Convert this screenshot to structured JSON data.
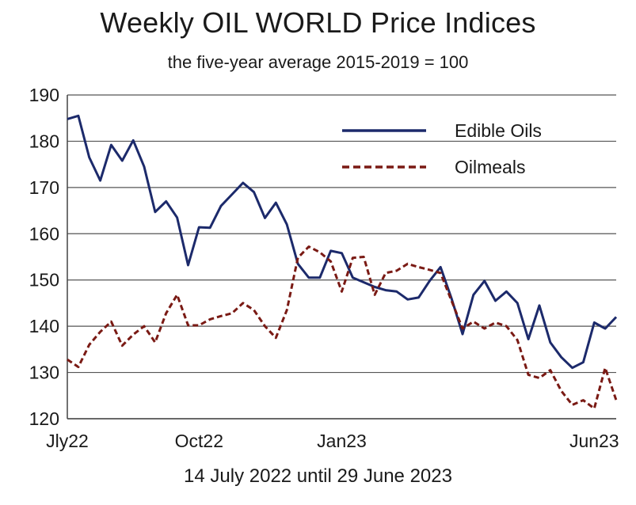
{
  "chart_data": {
    "type": "line",
    "title": "Weekly OIL WORLD Price Indices",
    "subtitle": "the five-year average 2015-2019 = 100",
    "xlabel": "14 July 2022 until 29 June 2023",
    "ylabel": "",
    "ylim": [
      120,
      190
    ],
    "yticks": [
      120,
      130,
      140,
      150,
      160,
      170,
      180,
      190
    ],
    "xlim": [
      0,
      50
    ],
    "xticks": [
      {
        "x": 0,
        "label": "Jly22"
      },
      {
        "x": 12,
        "label": "Oct22"
      },
      {
        "x": 25,
        "label": "Jan23"
      },
      {
        "x": 48,
        "label": "Jun23"
      }
    ],
    "grid": true,
    "legend": "top-right",
    "series": [
      {
        "name": "Edible Oils",
        "color": "#1c2a6b",
        "style": "solid",
        "values": [
          184.8,
          185.5,
          176.5,
          171.5,
          179.2,
          175.8,
          180.2,
          174.5,
          164.7,
          167,
          163.5,
          153.2,
          161.4,
          161.3,
          166,
          168.5,
          171,
          169,
          163.4,
          166.7,
          162,
          153.5,
          150.5,
          150.5,
          156.3,
          155.8,
          150.5,
          149.5,
          148.5,
          147.8,
          147.5,
          145.8,
          146.2,
          149.8,
          152.8,
          146,
          138.3,
          146.8,
          149.8,
          145.5,
          147.5,
          145,
          137.2,
          144.5,
          136.5,
          133.3,
          131,
          132.2,
          140.8,
          139.5,
          142
        ]
      },
      {
        "name": "Oilmeals",
        "color": "#7a1a14",
        "style": "dashed",
        "values": [
          132.8,
          131.2,
          136,
          138.8,
          141,
          135.8,
          138.2,
          140,
          136.5,
          142.8,
          146.8,
          140.2,
          140.2,
          141.5,
          142.2,
          142.8,
          145,
          143.5,
          140,
          137.5,
          143.5,
          154.8,
          157.2,
          156,
          154,
          147.5,
          154.8,
          155,
          146.8,
          151.5,
          152,
          153.5,
          152.8,
          152.2,
          151.5,
          145.5,
          139.5,
          141,
          139.5,
          140.8,
          140,
          137,
          129.5,
          128.8,
          130.5,
          126,
          123,
          124,
          122.2,
          131,
          124
        ]
      }
    ]
  }
}
